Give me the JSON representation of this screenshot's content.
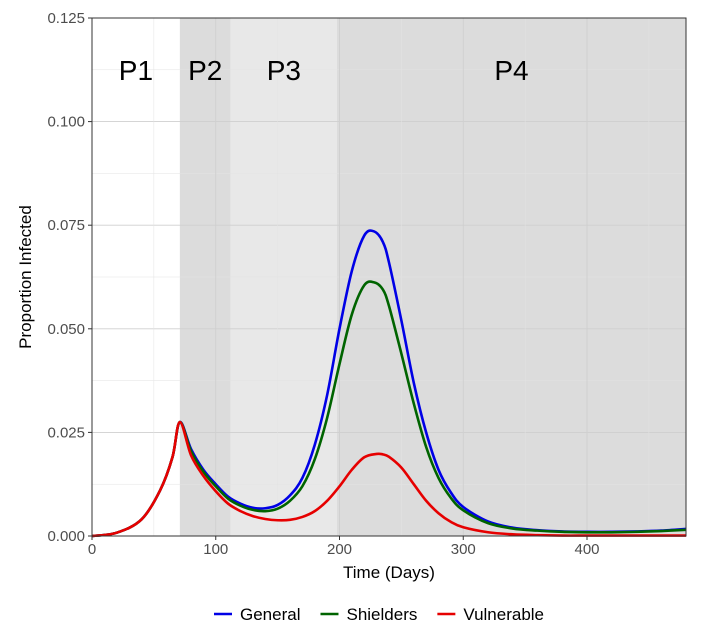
{
  "chart_data": {
    "type": "line",
    "title": "",
    "xlabel": "Time (Days)",
    "ylabel": "Proportion Infected",
    "xlim": [
      0,
      480
    ],
    "ylim": [
      0,
      0.125
    ],
    "x_ticks": [
      0,
      100,
      200,
      300,
      400
    ],
    "x_tick_labels": [
      "0",
      "100",
      "200",
      "300",
      "400"
    ],
    "y_ticks": [
      0,
      0.025,
      0.05,
      0.075,
      0.1,
      0.125
    ],
    "y_tick_labels": [
      "0.000",
      "0.025",
      "0.050",
      "0.075",
      "0.100",
      "0.125"
    ],
    "grid": true,
    "legend_position": "bottom",
    "phases": [
      {
        "label": "P1",
        "start": 0,
        "end": 71,
        "color": "#ffffff"
      },
      {
        "label": "P2",
        "start": 71,
        "end": 112,
        "color": "#dcdcdc"
      },
      {
        "label": "P3",
        "start": 112,
        "end": 198,
        "color": "#e8e8e8"
      },
      {
        "label": "P4",
        "start": 198,
        "end": 480,
        "color": "#dcdcdc"
      }
    ],
    "series": [
      {
        "name": "General",
        "color": "#0000e6",
        "x": [
          0,
          20,
          40,
          55,
          65,
          71,
          80,
          90,
          100,
          110,
          120,
          130,
          140,
          150,
          160,
          170,
          180,
          190,
          200,
          210,
          220,
          228,
          235,
          240,
          250,
          260,
          270,
          280,
          290,
          300,
          320,
          340,
          360,
          380,
          400,
          420,
          440,
          460,
          480
        ],
        "y": [
          0,
          0.0008,
          0.004,
          0.011,
          0.019,
          0.0275,
          0.021,
          0.016,
          0.0125,
          0.0095,
          0.0078,
          0.0068,
          0.0067,
          0.0075,
          0.0098,
          0.014,
          0.022,
          0.034,
          0.05,
          0.064,
          0.0725,
          0.0735,
          0.071,
          0.066,
          0.052,
          0.037,
          0.025,
          0.016,
          0.0105,
          0.007,
          0.0035,
          0.002,
          0.0014,
          0.0011,
          0.001,
          0.001,
          0.0011,
          0.0013,
          0.0017
        ]
      },
      {
        "name": "Shielders",
        "color": "#006400",
        "x": [
          0,
          20,
          40,
          55,
          65,
          71,
          80,
          90,
          100,
          110,
          120,
          130,
          140,
          150,
          160,
          170,
          180,
          190,
          200,
          210,
          220,
          228,
          235,
          240,
          250,
          260,
          270,
          280,
          290,
          300,
          320,
          340,
          360,
          380,
          400,
          420,
          440,
          460,
          480
        ],
        "y": [
          0,
          0.0008,
          0.004,
          0.011,
          0.019,
          0.0275,
          0.0205,
          0.0155,
          0.012,
          0.009,
          0.0073,
          0.0063,
          0.006,
          0.0066,
          0.0085,
          0.012,
          0.0185,
          0.0285,
          0.0415,
          0.0535,
          0.0605,
          0.0612,
          0.0595,
          0.0555,
          0.044,
          0.032,
          0.0215,
          0.014,
          0.0092,
          0.0062,
          0.0031,
          0.0018,
          0.0013,
          0.001,
          0.0009,
          0.0009,
          0.001,
          0.0012,
          0.0015
        ]
      },
      {
        "name": "Vulnerable",
        "color": "#e60000",
        "x": [
          0,
          20,
          40,
          55,
          65,
          71,
          80,
          90,
          100,
          110,
          120,
          130,
          140,
          150,
          160,
          170,
          180,
          190,
          200,
          210,
          220,
          230,
          235,
          240,
          250,
          260,
          270,
          280,
          290,
          300,
          320,
          340,
          360,
          380,
          400,
          420,
          440,
          460,
          480
        ],
        "y": [
          0,
          0.0008,
          0.004,
          0.011,
          0.019,
          0.0275,
          0.0195,
          0.0145,
          0.0108,
          0.0078,
          0.006,
          0.0048,
          0.0041,
          0.0038,
          0.0039,
          0.0046,
          0.006,
          0.0085,
          0.012,
          0.016,
          0.019,
          0.0198,
          0.0197,
          0.0191,
          0.0165,
          0.0125,
          0.0085,
          0.0055,
          0.0034,
          0.0021,
          0.0009,
          0.0004,
          0.0002,
          0.0001,
          0.0001,
          0.0001,
          0.0001,
          0.0001,
          0.0001
        ]
      }
    ]
  }
}
